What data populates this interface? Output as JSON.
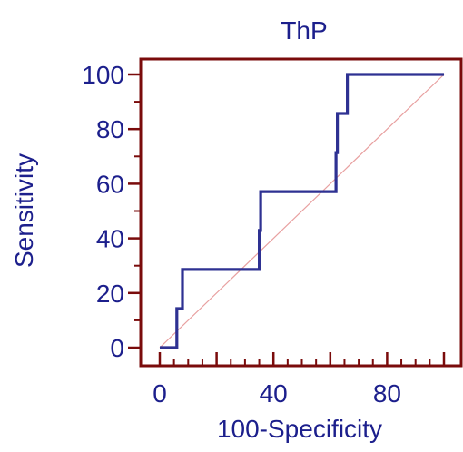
{
  "chart_data": {
    "type": "line",
    "title": "ThP",
    "xlabel": "100-Specificity",
    "ylabel": "Sensitivity",
    "xlim": [
      0,
      100
    ],
    "ylim": [
      0,
      100
    ],
    "x_ticks": [
      "0",
      "40",
      "80"
    ],
    "y_ticks": [
      "0",
      "20",
      "40",
      "60",
      "80",
      "100"
    ],
    "grid": false,
    "legend": "none",
    "colors": {
      "roc_line": "#2e3192",
      "diagonal": "#e8a0a0",
      "frame": "#7a0b0b",
      "text": "#1c1f8c"
    },
    "series": [
      {
        "x": [
          0,
          6,
          6,
          7,
          8,
          8,
          35,
          35,
          35.5,
          35.5,
          62,
          62,
          62.5,
          62.5,
          66,
          66,
          100
        ],
        "y": [
          0,
          0,
          14.3,
          14.3,
          14.3,
          28.6,
          28.6,
          42.9,
          42.9,
          57.1,
          57.1,
          71.4,
          71.4,
          85.7,
          85.7,
          100,
          100
        ]
      }
    ],
    "reference_line": {
      "x": [
        0,
        100
      ],
      "y": [
        0,
        100
      ]
    }
  }
}
